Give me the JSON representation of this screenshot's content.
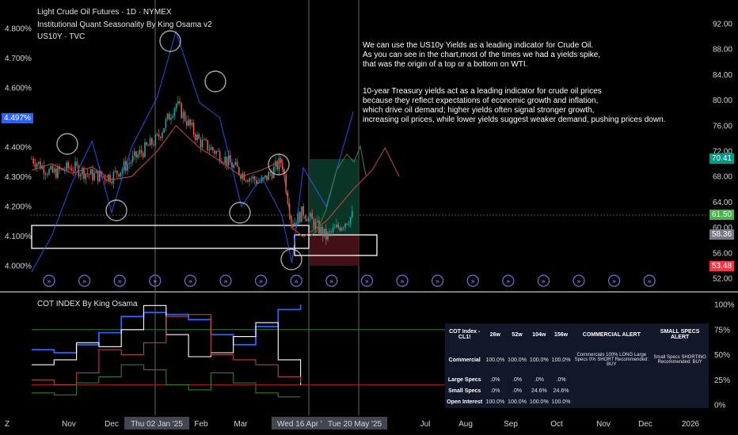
{
  "header": {
    "symbol": "Light Crude Oil Futures · 1D · NYMEX",
    "indicator": "Institutional Quant Seasonality By King Osama v2",
    "compare": "US10Y · TVC"
  },
  "note": {
    "p1": [
      "We can use the US10y Yields as a leading indicator for Crude Oil.",
      "As you can see in the chart,most of the times we had a yields spike,",
      "that was the origin of a top or a bottom on WTI."
    ],
    "p2": [
      "10-year Treasury yields act as a leading indicator for crude oil prices",
      "because they reflect expectations of economic growth and inflation,",
      "which drive oil demand; higher yields often signal stronger growth,",
      "increasing oil prices, while lower yields suggest weaker demand, pushing prices down."
    ]
  },
  "price_labels": {
    "current": "70.41",
    "level1": "61.50",
    "level2": "58.36",
    "level3": "53.48",
    "yield_current": "4.497%"
  },
  "colors": {
    "up": "#26a69a",
    "down": "#ef5350",
    "yield": "#2962ff",
    "seasonality": "#b54545",
    "green_label": "#089981",
    "bright_green": "#4caf50",
    "red_label": "#f23645",
    "gray_label": "#787b86"
  },
  "chart_data": [
    {
      "type": "line",
      "title": "Light Crude Oil Futures · 1D · NYMEX",
      "x_axis_labels": [
        "Nov",
        "Dec",
        "Thu 02 Jan '25",
        "Feb",
        "Mar",
        "Ap",
        "Wed 16 Apr '25",
        "Tue 20 May '25",
        "Jul",
        "Aug",
        "Sep",
        "Oct",
        "Nov",
        "Dec",
        "2026"
      ],
      "right_axis_ticks": [
        "92.00",
        "88.00",
        "84.00",
        "80.00",
        "76.00",
        "72.00",
        "68.00",
        "64.00",
        "60.00",
        "56.00",
        "52.00"
      ],
      "left_axis_ticks": [
        "4.800%",
        "4.700%",
        "4.600%",
        "4.400%",
        "4.300%",
        "4.200%",
        "4.100%",
        "4.000%"
      ],
      "ylim_price": [
        51,
        95
      ],
      "ylim_yield": [
        3.97,
        4.83
      ],
      "series": [
        {
          "name": "Light Crude Oil Futures",
          "x": [
            "10-01",
            "10-15",
            "11-01",
            "11-15",
            "12-01",
            "12-15",
            "01-02",
            "01-15",
            "02-01",
            "02-15",
            "03-01",
            "03-15",
            "04-01",
            "04-08",
            "04-16",
            "05-01",
            "05-20"
          ],
          "values": [
            70.8,
            68.5,
            69.5,
            68.2,
            68.0,
            70.5,
            74.0,
            79.5,
            73.5,
            71.5,
            68.5,
            67.0,
            70.5,
            60.5,
            62.5,
            58.5,
            62.0
          ]
        },
        {
          "name": "US10Y",
          "x": [
            "10-01",
            "10-15",
            "11-01",
            "11-15",
            "12-01",
            "12-15",
            "01-02",
            "01-15",
            "02-01",
            "02-15",
            "03-01",
            "03-15",
            "04-01",
            "04-08",
            "04-16",
            "05-01",
            "05-20"
          ],
          "values": [
            3.98,
            4.1,
            4.28,
            4.42,
            4.18,
            4.4,
            4.57,
            4.79,
            4.55,
            4.5,
            4.2,
            4.3,
            4.17,
            4.01,
            4.33,
            4.2,
            4.52
          ]
        },
        {
          "name": "Seasonality",
          "x": [
            "10-01",
            "10-15",
            "11-01",
            "11-15",
            "12-01",
            "12-15",
            "01-02",
            "01-15",
            "02-01",
            "02-15",
            "03-01",
            "03-15",
            "04-01",
            "04-08",
            "04-16",
            "05-01",
            "05-20",
            "06-01",
            "06-10",
            "06-20"
          ],
          "values": [
            69.0,
            70.0,
            68.5,
            69.5,
            67.5,
            68.0,
            72.0,
            76.0,
            72.5,
            70.5,
            68.0,
            69.0,
            70.5,
            60.0,
            58.5,
            61.0,
            66.0,
            69.0,
            72.5,
            68.0
          ]
        }
      ],
      "markers": [
        "»",
        "»",
        "»",
        "»",
        "»",
        "»",
        "»",
        "»",
        "»",
        "»",
        "»",
        "»",
        "»",
        "»",
        "»",
        "»",
        "»",
        "»"
      ]
    },
    {
      "type": "line",
      "title": "COT INDEX By King Osama",
      "right_axis_ticks": [
        "100%",
        "75%",
        "50%",
        "25%",
        "0%"
      ],
      "ylim": [
        0,
        100
      ],
      "series": [
        {
          "x": [
            0,
            1,
            2,
            3,
            4,
            5,
            6,
            7,
            8,
            9,
            10,
            11,
            12
          ],
          "values": [
            55,
            52,
            60,
            72,
            88,
            92,
            90,
            85,
            70,
            60,
            78,
            95,
            100
          ]
        },
        {
          "x": [
            0,
            1,
            2,
            3,
            4,
            5,
            6,
            7,
            8,
            9,
            10,
            11,
            12
          ],
          "values": [
            40,
            45,
            62,
            58,
            75,
            99,
            70,
            48,
            52,
            68,
            82,
            45,
            20
          ]
        },
        {
          "x": [
            0,
            1,
            2,
            3,
            4,
            5,
            6,
            7,
            8,
            9,
            10,
            11,
            12
          ],
          "values": [
            25,
            20,
            32,
            55,
            50,
            62,
            88,
            90,
            50,
            45,
            40,
            28,
            22
          ]
        },
        {
          "x": [
            0,
            1,
            2,
            3,
            4,
            5,
            6,
            7,
            8,
            9,
            10,
            11,
            12
          ],
          "values": [
            12,
            10,
            22,
            28,
            40,
            35,
            20,
            15,
            32,
            22,
            12,
            8,
            8
          ]
        }
      ],
      "table": {
        "headers": [
          "COT Index - CL1!",
          "26w",
          "52w",
          "104w",
          "156w",
          "COMMERCIAL ALERT",
          "SMALL SPECS ALERT"
        ],
        "rows": [
          {
            "label": "Commercial",
            "values": [
              "100.0%",
              "100.0%",
              "100.0%",
              "100.0%"
            ],
            "alert1": "Commercials 100% LONG Large Specs 0% SHORT Recommended: BUY",
            "alert2": "Small Specs SHORTING Recommended: BUY"
          },
          {
            "label": "Large Specs",
            "values": [
              ".0%",
              ".0%",
              ".0%",
              ".0%"
            ]
          },
          {
            "label": "Small Specs",
            "values": [
              ".0%",
              ".0%",
              "24.6%",
              "24.6%"
            ]
          },
          {
            "label": "Open Interest",
            "values": [
              "100.0%",
              "100.0%",
              "100.0%",
              "100.0%"
            ]
          }
        ]
      }
    }
  ]
}
